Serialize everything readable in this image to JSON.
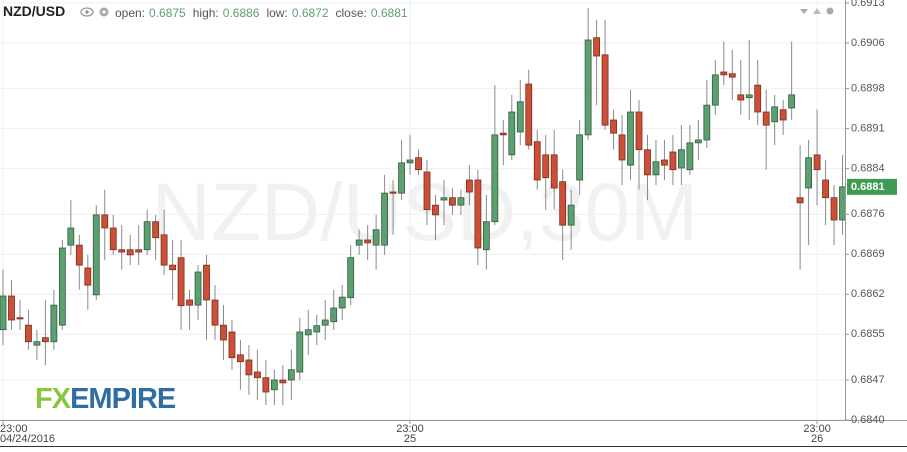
{
  "chart_data": {
    "type": "candlestick",
    "title": "NZD/USD",
    "watermark": "NZD/USD,30M",
    "ohlc_legend": [
      {
        "label": "open:",
        "value": "0.6875"
      },
      {
        "label": "high:",
        "value": "0.6886"
      },
      {
        "label": "low:",
        "value": "0.6872"
      },
      {
        "label": "close:",
        "value": "0.6881"
      }
    ],
    "logo": {
      "prefix": "FX",
      "suffix": "EMPIRE"
    },
    "last_label": "0.6881",
    "up_color": "#5e9f72",
    "down_color": "#cc5038",
    "grid": true,
    "ylim": [
      0.684,
      0.69135
    ],
    "yticks": [
      0.6913,
      0.6906,
      0.6898,
      0.6891,
      0.6884,
      0.6876,
      0.6869,
      0.6862,
      0.6855,
      0.6847,
      {
        "value": 0.684,
        "label": "0.6840"
      }
    ],
    "categories": [
      "23:00",
      null,
      null,
      null,
      null,
      null,
      null,
      null,
      null,
      null,
      null,
      null,
      null,
      null,
      null,
      null,
      null,
      null,
      null,
      null,
      null,
      null,
      null,
      null,
      null,
      null,
      null,
      null,
      null,
      null,
      null,
      null,
      null,
      null,
      null,
      null,
      null,
      null,
      null,
      null,
      null,
      null,
      null,
      null,
      null,
      null,
      null,
      null,
      "23:00",
      null,
      null,
      null,
      null,
      null,
      null,
      null,
      null,
      null,
      null,
      null,
      null,
      null,
      null,
      null,
      null,
      null,
      null,
      null,
      null,
      null,
      null,
      null,
      null,
      null,
      null,
      null,
      null,
      null,
      null,
      null,
      null,
      null,
      null,
      null,
      null,
      null,
      null,
      null,
      null,
      null,
      null,
      null,
      null,
      null,
      null,
      null,
      "23:00",
      null,
      null,
      null
    ],
    "dates": [
      "04/24/2016",
      null,
      null,
      null,
      null,
      null,
      null,
      null,
      null,
      null,
      null,
      null,
      null,
      null,
      null,
      null,
      null,
      null,
      null,
      null,
      null,
      null,
      null,
      null,
      null,
      null,
      null,
      null,
      null,
      null,
      null,
      null,
      null,
      null,
      null,
      null,
      null,
      null,
      null,
      null,
      null,
      null,
      null,
      null,
      null,
      null,
      null,
      null,
      "25",
      null,
      null,
      null,
      null,
      null,
      null,
      null,
      null,
      null,
      null,
      null,
      null,
      null,
      null,
      null,
      null,
      null,
      null,
      null,
      null,
      null,
      null,
      null,
      null,
      null,
      null,
      null,
      null,
      null,
      null,
      null,
      null,
      null,
      null,
      null,
      null,
      null,
      null,
      null,
      null,
      null,
      null,
      null,
      null,
      null,
      null,
      null,
      "26",
      null,
      null,
      null
    ],
    "open": [
      0.68558,
      0.68617,
      0.68579,
      0.68566,
      0.68531,
      0.68544,
      0.68537,
      0.68566,
      0.68706,
      0.68706,
      0.68666,
      0.68619,
      0.68759,
      0.68736,
      0.68698,
      0.68698,
      0.68698,
      0.68698,
      0.68747,
      0.68724,
      0.68671,
      0.68684,
      0.6861,
      0.68601,
      0.68671,
      0.6861,
      0.68566,
      0.68554,
      0.68514,
      0.68505,
      0.68484,
      0.68474,
      0.68453,
      0.6847,
      0.6847,
      0.68484,
      0.68549,
      0.68554,
      0.68566,
      0.68572,
      0.68596,
      0.68614,
      0.68706,
      0.68715,
      0.68706,
      0.68706,
      0.68799,
      0.68797,
      0.6885,
      0.68859,
      0.68834,
      0.68776,
      0.68785,
      0.68789,
      0.68776,
      0.6882,
      0.6882,
      0.68698,
      0.68747,
      0.68902,
      0.68864,
      0.68904,
      0.68988,
      0.68887,
      0.68864,
      0.68864,
      0.68817,
      0.68741,
      0.6882,
      0.68899,
      0.69069,
      0.69039,
      0.68925,
      0.68899,
      0.68846,
      0.68939,
      0.68873,
      0.68829,
      0.68855,
      0.68869,
      0.68841,
      0.68838,
      0.68885,
      0.6889,
      0.68951,
      0.69009,
      0.69006,
      0.68969,
      0.68964,
      0.68986,
      0.68939,
      0.68922,
      0.68943,
      0.68946,
      0.68789,
      0.68806,
      0.68864,
      0.6882,
      0.68789,
      0.6875
    ],
    "high": [
      0.68663,
      0.68645,
      0.6861,
      0.68593,
      0.68558,
      0.6861,
      0.68628,
      0.68715,
      0.68785,
      0.68724,
      0.68689,
      0.68776,
      0.68803,
      0.68759,
      0.68741,
      0.68724,
      0.68741,
      0.68768,
      0.68759,
      0.68768,
      0.68715,
      0.68715,
      0.68628,
      0.68671,
      0.68689,
      0.68636,
      0.68601,
      0.68575,
      0.6854,
      0.68531,
      0.68523,
      0.68505,
      0.68488,
      0.68496,
      0.68523,
      0.68579,
      0.68593,
      0.68584,
      0.6861,
      0.68628,
      0.68636,
      0.68706,
      0.68733,
      0.68741,
      0.68759,
      0.68829,
      0.6882,
      0.6889,
      0.68899,
      0.68873,
      0.68855,
      0.68794,
      0.6882,
      0.68806,
      0.68803,
      0.68846,
      0.68838,
      0.68794,
      0.68986,
      0.68925,
      0.68969,
      0.68995,
      0.69013,
      0.68908,
      0.68899,
      0.68908,
      0.68838,
      0.68803,
      0.68925,
      0.69121,
      0.691,
      0.691,
      0.68943,
      0.68934,
      0.68978,
      0.6896,
      0.68899,
      0.6889,
      0.6889,
      0.68899,
      0.68916,
      0.68916,
      0.68925,
      0.68995,
      0.6903,
      0.69062,
      0.69048,
      0.6903,
      0.69065,
      0.6903,
      0.68978,
      0.68969,
      0.6896,
      0.69062,
      0.68881,
      0.6889,
      0.68943,
      0.68855,
      0.68811,
      0.68864
    ],
    "low": [
      0.68531,
      0.68558,
      0.68558,
      0.68523,
      0.68505,
      0.68496,
      0.68523,
      0.68558,
      0.68689,
      0.68628,
      0.68593,
      0.6861,
      0.6868,
      0.68689,
      0.68663,
      0.68671,
      0.68671,
      0.68689,
      0.6868,
      0.68654,
      0.6861,
      0.68558,
      0.68558,
      0.68575,
      0.6854,
      0.6854,
      0.68505,
      0.68488,
      0.68453,
      0.68444,
      0.68435,
      0.68426,
      0.68426,
      0.68426,
      0.68435,
      0.6847,
      0.68514,
      0.68531,
      0.6854,
      0.68558,
      0.68575,
      0.68601,
      0.68689,
      0.6868,
      0.68663,
      0.68689,
      0.68724,
      0.68785,
      0.68829,
      0.68829,
      0.68741,
      0.68715,
      0.68741,
      0.68759,
      0.68759,
      0.68776,
      0.68671,
      0.68663,
      0.68741,
      0.68846,
      0.68855,
      0.68881,
      0.68873,
      0.68803,
      0.68768,
      0.68768,
      0.6868,
      0.68698,
      0.68794,
      0.6889,
      0.68951,
      0.68908,
      0.68873,
      0.68811,
      0.6882,
      0.68803,
      0.68785,
      0.68811,
      0.6882,
      0.68811,
      0.68811,
      0.68829,
      0.68855,
      0.68876,
      0.68934,
      0.68986,
      0.6896,
      0.68934,
      0.68925,
      0.68916,
      0.68838,
      0.68881,
      0.68899,
      0.68925,
      0.68663,
      0.68706,
      0.68776,
      0.68741,
      0.68706,
      0.68724
    ],
    "close": [
      0.68617,
      0.68575,
      0.68577,
      0.68537,
      0.68537,
      0.68537,
      0.68601,
      0.68701,
      0.68736,
      0.68671,
      0.68636,
      0.68759,
      0.68736,
      0.68698,
      0.68694,
      0.68689,
      0.68694,
      0.68747,
      0.68719,
      0.68671,
      0.68663,
      0.686,
      0.68601,
      0.68659,
      0.6861,
      0.68566,
      0.6854,
      0.68509,
      0.68502,
      0.68479,
      0.68474,
      0.68449,
      0.6847,
      0.68465,
      0.68488,
      0.68554,
      0.68558,
      0.68565,
      0.68575,
      0.68596,
      0.68615,
      0.68684,
      0.68715,
      0.6871,
      0.68733,
      0.68797,
      0.68797,
      0.6885,
      0.68855,
      0.68838,
      0.68768,
      0.68759,
      0.68789,
      0.68776,
      0.68789,
      0.68799,
      0.68701,
      0.68747,
      0.68899,
      0.68899,
      0.68939,
      0.68957,
      0.68881,
      0.6882,
      0.68824,
      0.68806,
      0.68741,
      0.68776,
      0.68899,
      0.69065,
      0.69037,
      0.68916,
      0.68902,
      0.68855,
      0.68939,
      0.68873,
      0.68829,
      0.68852,
      0.68846,
      0.68838,
      0.68873,
      0.68885,
      0.6889,
      0.68951,
      0.69004,
      0.69004,
      0.69,
      0.6896,
      0.68969,
      0.68939,
      0.68916,
      0.68948,
      0.68925,
      0.68969,
      0.6878,
      0.68859,
      0.68838,
      0.68789,
      0.6875,
      0.68808
    ]
  }
}
